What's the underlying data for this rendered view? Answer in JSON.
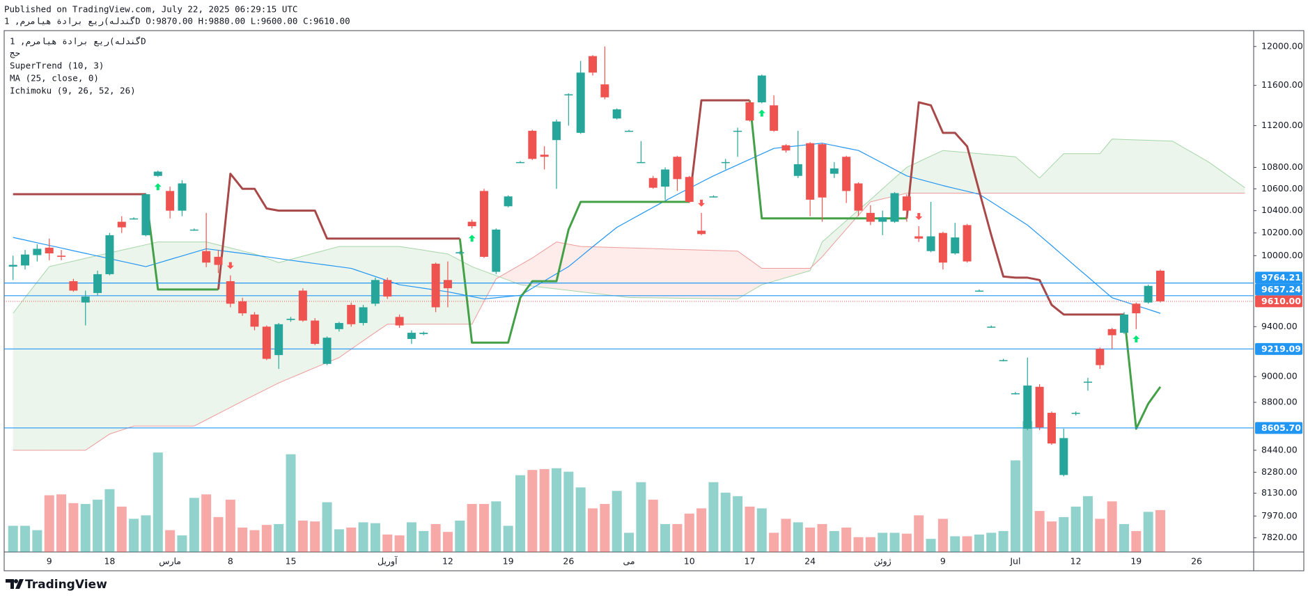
{
  "header": {
    "published": "Published on TradingView.com, July 22, 2025 06:29:15 UTC",
    "ohlc_line": "گندله)ریع برادة هیامرم, 1D O:9870.00 H:9880.00 L:9600.00 C:9610.00"
  },
  "footer": {
    "brand": "TradingView"
  },
  "chart_data": {
    "type": "candlestick",
    "symbol": "گندله)ریع برادة هیامرم, 1D",
    "log_scale": true,
    "grid": false,
    "ylim": [
      7724,
      12167
    ],
    "yticks": [
      {
        "value": 12000,
        "label": "12000.00"
      },
      {
        "value": 11600,
        "label": "11600.00"
      },
      {
        "value": 11200,
        "label": "11200.00"
      },
      {
        "value": 10800,
        "label": "10800.00"
      },
      {
        "value": 10600,
        "label": "10600.00"
      },
      {
        "value": 10400,
        "label": "10400.00"
      },
      {
        "value": 10200,
        "label": "10200.00"
      },
      {
        "value": 10000,
        "label": "10000.00"
      },
      {
        "value": 9400,
        "label": "9400.00"
      },
      {
        "value": 9000,
        "label": "9000.00"
      },
      {
        "value": 8800,
        "label": "8800.00"
      },
      {
        "value": 8440,
        "label": "8440.00"
      },
      {
        "value": 8280,
        "label": "8280.00"
      },
      {
        "value": 8130,
        "label": "8130.00"
      },
      {
        "value": 7970,
        "label": "7970.00"
      },
      {
        "value": 7820,
        "label": "7820.00"
      }
    ],
    "categories": [
      null,
      null,
      null,
      "9",
      null,
      null,
      null,
      null,
      "18",
      null,
      null,
      null,
      null,
      "مارس",
      null,
      null,
      null,
      null,
      "8",
      null,
      null,
      null,
      null,
      "15",
      null,
      null,
      null,
      null,
      null,
      null,
      null,
      "آوریل",
      null,
      null,
      null,
      null,
      "12",
      null,
      null,
      null,
      null,
      "19",
      null,
      null,
      null,
      null,
      "26",
      null,
      null,
      null,
      null,
      "می",
      null,
      null,
      null,
      null,
      "10",
      null,
      null,
      null,
      null,
      "17",
      null,
      null,
      null,
      null,
      "24",
      null,
      null,
      null,
      null,
      null,
      "ژوئن",
      null,
      null,
      null,
      null,
      "9",
      null,
      null,
      null,
      null,
      null,
      "Jul",
      null,
      null,
      null,
      null,
      "12",
      null,
      null,
      null,
      null,
      "19",
      null,
      null,
      null,
      null,
      "26",
      null,
      null,
      null,
      null
    ],
    "open": [
      9905,
      9915,
      10005,
      10070,
      10000,
      9780,
      9600,
      9680,
      9840,
      10300,
      10330,
      10180,
      10720,
      10580,
      10400,
      10230,
      10040,
      9990,
      9780,
      9610,
      9500,
      9400,
      9170,
      9455,
      9700,
      9450,
      9100,
      9380,
      9580,
      9430,
      9590,
      9790,
      9480,
      9300,
      9340,
      9930,
      9790,
      10020,
      10300,
      10580,
      9860,
      10440,
      10850,
      11150,
      10920,
      11060,
      11500,
      11130,
      11900,
      11610,
      11270,
      11150,
      10850,
      10700,
      10620,
      10900,
      10710,
      10220,
      10530,
      10850,
      11150,
      11430,
      11430,
      11400,
      11010,
      10720,
      11030,
      11020,
      10740,
      10900,
      10650,
      10380,
      10300,
      10300,
      10530,
      10170,
      10040,
      10200,
      10020,
      10270,
      9700,
      9400,
      9130,
      8870,
      8600,
      8920,
      8720,
      8260,
      8720,
      8960,
      9220,
      9380,
      9350,
      9590,
      9600,
      9870,
      null,
      null,
      null,
      null,
      null,
      null,
      null
    ],
    "high": [
      10000,
      10050,
      10100,
      10150,
      10050,
      9800,
      9700,
      9870,
      10200,
      10350,
      10340,
      10560,
      10770,
      10620,
      10680,
      10240,
      10380,
      10050,
      9830,
      9640,
      9520,
      9410,
      9430,
      9480,
      9720,
      9470,
      9320,
      9440,
      9600,
      9580,
      9810,
      9810,
      9500,
      9370,
      9360,
      9940,
      9950,
      10040,
      10320,
      10600,
      10240,
      10540,
      10860,
      11160,
      11000,
      11260,
      11520,
      11850,
      11910,
      12000,
      11370,
      11160,
      11050,
      10720,
      10800,
      10910,
      10720,
      10380,
      10540,
      10880,
      11180,
      11450,
      11710,
      11500,
      11020,
      11150,
      11040,
      11030,
      10850,
      10910,
      10660,
      10450,
      10400,
      10570,
      10550,
      10260,
      10480,
      10210,
      10290,
      10280,
      9710,
      9410,
      9140,
      8880,
      9150,
      8940,
      8730,
      8600,
      8730,
      8990,
      9230,
      9390,
      9520,
      9600,
      9750,
      9880,
      null,
      null,
      null,
      null,
      null,
      null,
      null
    ],
    "low": [
      9790,
      9880,
      9950,
      9960,
      9960,
      9690,
      9410,
      9660,
      9830,
      10200,
      10320,
      10170,
      10710,
      10330,
      10350,
      10220,
      9900,
      9850,
      9560,
      9490,
      9370,
      9130,
      9060,
      9440,
      9440,
      9250,
      9090,
      9360,
      9400,
      9410,
      9570,
      9630,
      9390,
      9260,
      9330,
      9520,
      9560,
      10010,
      10240,
      9980,
      9840,
      10430,
      10840,
      10870,
      10780,
      10600,
      11200,
      11120,
      11700,
      11460,
      11260,
      11140,
      10840,
      10600,
      10500,
      10580,
      10470,
      10180,
      10520,
      10780,
      10900,
      11240,
      11420,
      11140,
      10940,
      10700,
      10350,
      10300,
      10700,
      10470,
      10350,
      10270,
      10180,
      10290,
      10300,
      10120,
      10030,
      9880,
      10010,
      9940,
      9690,
      9390,
      9120,
      8860,
      8590,
      8590,
      8480,
      8250,
      8700,
      8890,
      9060,
      9220,
      9340,
      9380,
      9590,
      9600,
      null,
      null,
      null,
      null,
      null,
      null,
      null
    ],
    "close": [
      9920,
      10010,
      10060,
      10020,
      9990,
      9700,
      9650,
      9840,
      10180,
      10250,
      10330,
      10550,
      10760,
      10400,
      10650,
      10230,
      9940,
      9920,
      9590,
      9510,
      9400,
      9140,
      9420,
      9465,
      9450,
      9260,
      9310,
      9430,
      9420,
      9560,
      9790,
      9650,
      9410,
      9350,
      9350,
      9560,
      9720,
      10030,
      10260,
      9990,
      10230,
      10530,
      10850,
      10880,
      10900,
      11240,
      11510,
      11730,
      11730,
      11480,
      11360,
      11150,
      10850,
      10610,
      10780,
      10690,
      10480,
      10190,
      10530,
      10850,
      11150,
      11250,
      11700,
      11150,
      10960,
      10830,
      10500,
      10520,
      10790,
      10580,
      10400,
      10300,
      10340,
      10560,
      10400,
      10150,
      10170,
      9940,
      10160,
      9950,
      9700,
      9400,
      9130,
      8870,
      8930,
      8610,
      8490,
      8530,
      8720,
      8960,
      9090,
      9330,
      9500,
      9510,
      9740,
      9610,
      null,
      null,
      null,
      null,
      null,
      null,
      null
    ],
    "up_color": "#26a69a",
    "down_color": "#ef5350",
    "volume": {
      "name": "حج",
      "values": [
        30,
        30,
        25,
        65,
        66,
        56,
        55,
        60,
        72,
        52,
        38,
        42,
        114,
        25,
        19,
        62,
        66,
        40,
        60,
        28,
        25,
        31,
        32,
        112,
        36,
        35,
        57,
        26,
        28,
        34,
        33,
        20,
        19,
        34,
        24,
        32,
        23,
        36,
        55,
        55,
        58,
        30,
        88,
        94,
        95,
        96,
        92,
        74,
        50,
        55,
        70,
        22,
        80,
        60,
        32,
        32,
        44,
        50,
        80,
        68,
        64,
        52,
        50,
        22,
        38,
        34,
        28,
        32,
        24,
        28,
        17,
        17,
        22,
        22,
        21,
        42,
        15,
        38,
        18,
        18,
        20,
        22,
        24,
        105,
        150,
        47,
        35,
        40,
        52,
        64,
        38,
        58,
        32,
        24,
        46,
        48,
        null,
        null,
        null,
        null,
        null,
        null,
        null
      ]
    },
    "supertrend": {
      "name": "SuperTrend (10, 3)",
      "up_color": "#43a047",
      "down_color": "#a84848",
      "up": [
        null,
        null,
        null,
        null,
        null,
        null,
        null,
        null,
        null,
        null,
        null,
        10550,
        9710,
        9710,
        9710,
        9710,
        9710,
        9710,
        null,
        null,
        null,
        null,
        null,
        null,
        null,
        null,
        null,
        null,
        null,
        null,
        null,
        null,
        null,
        null,
        null,
        null,
        null,
        10150,
        9270,
        9270,
        9270,
        9270,
        9640,
        9780,
        9780,
        9780,
        10230,
        10480,
        10480,
        10480,
        10480,
        10480,
        10480,
        10480,
        10480,
        10480,
        10480,
        null,
        null,
        null,
        null,
        11450,
        10330,
        10330,
        10330,
        10330,
        10330,
        10330,
        10330,
        10330,
        10330,
        10330,
        10330,
        10330,
        10330,
        null,
        null,
        null,
        null,
        null,
        null,
        null,
        null,
        null,
        null,
        null,
        null,
        null,
        null,
        null,
        null,
        null,
        9500,
        8600,
        8790,
        8920,
        null,
        null,
        null,
        null,
        null,
        null,
        null
      ],
      "down": [
        10550,
        10550,
        10550,
        10550,
        10550,
        10550,
        10550,
        10550,
        10550,
        10550,
        10550,
        10550,
        null,
        null,
        null,
        null,
        null,
        9710,
        10740,
        10600,
        10600,
        10420,
        10400,
        10400,
        10400,
        10400,
        10150,
        10150,
        10150,
        10150,
        10150,
        10150,
        10150,
        10150,
        10150,
        10150,
        10150,
        10150,
        null,
        null,
        null,
        null,
        null,
        null,
        null,
        null,
        null,
        null,
        null,
        null,
        null,
        null,
        null,
        null,
        null,
        null,
        10480,
        11450,
        11450,
        11450,
        11450,
        11450,
        null,
        null,
        null,
        null,
        null,
        null,
        null,
        null,
        null,
        null,
        null,
        null,
        10330,
        11430,
        11400,
        11130,
        11130,
        11000,
        10580,
        10180,
        9820,
        9810,
        9810,
        9790,
        9580,
        9500,
        9500,
        9500,
        9500,
        9500,
        9500,
        null,
        null,
        null,
        null,
        null,
        null,
        null,
        null,
        null,
        null
      ]
    },
    "ma": {
      "name": "MA (25, close, 0)",
      "color": "#2196f3",
      "values": [
        10160,
        10137,
        10113,
        10090,
        10067,
        10043,
        10020,
        9997,
        9974,
        9951,
        9928,
        9905,
        9936,
        9967,
        9998,
        10029,
        10060,
        10047,
        10033,
        10020,
        10005,
        9990,
        9975,
        9960,
        9946,
        9932,
        9918,
        9904,
        9890,
        9855,
        9820,
        9785,
        9750,
        9735,
        9720,
        9705,
        9690,
        9670,
        9650,
        9630,
        9640,
        9650,
        9660,
        9721,
        9783,
        9844,
        9905,
        9991,
        10078,
        10164,
        10250,
        10310,
        10370,
        10430,
        10490,
        10548,
        10605,
        10663,
        10720,
        10772,
        10824,
        10876,
        10928,
        10980,
        10993,
        11005,
        11018,
        11030,
        11007,
        10983,
        10960,
        10900,
        10840,
        10780,
        10720,
        10690,
        10660,
        10630,
        10603,
        10577,
        10550,
        10480,
        10410,
        10340,
        10270,
        10179,
        10088,
        9996,
        9905,
        9817,
        9728,
        9640,
        9608,
        9575,
        9543,
        9510,
        null,
        null,
        null,
        null,
        null,
        null,
        null
      ]
    },
    "ichimoku": {
      "name": "Ichimoku (9, 26, 52, 26)",
      "span_a_color": "#a5d6a7",
      "span_b_color": "#ef9a9a",
      "bull_fill": "rgba(67,160,71,0.1)",
      "bear_fill": "rgba(244,67,54,0.1)",
      "span_a": [
        9510,
        9642,
        9773,
        9905,
        9929,
        9953,
        9977,
        10001,
        10024,
        10048,
        10072,
        10096,
        10120,
        10120,
        10120,
        10120,
        10120,
        10094,
        10068,
        10041,
        10015,
        9978,
        9940,
        9968,
        9996,
        10024,
        10052,
        10080,
        10080,
        10080,
        10080,
        10080,
        10080,
        10064,
        10048,
        10031,
        10015,
        9960,
        9905,
        9866,
        9828,
        9789,
        9750,
        9738,
        9726,
        9714,
        9702,
        9690,
        9678,
        9666,
        9654,
        9642,
        9640,
        9639,
        9638,
        9636,
        9635,
        9634,
        9633,
        9631,
        9630,
        9690,
        9750,
        9780,
        9810,
        9840,
        9870,
        10120,
        10215,
        10310,
        10405,
        10500,
        10600,
        10700,
        10800,
        10853,
        10907,
        10960,
        10950,
        10940,
        10930,
        10920,
        10910,
        10900,
        10800,
        10700,
        10815,
        10930,
        10930,
        10930,
        10930,
        11070,
        11066,
        11062,
        11058,
        11054,
        11050,
        10983,
        10917,
        10850,
        10770,
        10690,
        10610
      ],
      "span_b": [
        8440,
        8440,
        8440,
        8440,
        8440,
        8440,
        8440,
        8500,
        8560,
        8590,
        8620,
        8620,
        8620,
        8620,
        8620,
        8620,
        8667,
        8714,
        8761,
        8809,
        8856,
        8903,
        8950,
        8990,
        9030,
        9070,
        9110,
        9150,
        9218,
        9285,
        9353,
        9420,
        9420,
        9420,
        9420,
        9420,
        9420,
        9420,
        9420,
        9610,
        9800,
        9860,
        9920,
        9980,
        10050,
        10120,
        10100,
        10080,
        10077,
        10074,
        10071,
        10068,
        10065,
        10062,
        10058,
        10055,
        10052,
        10049,
        10046,
        10043,
        10040,
        9965,
        9890,
        9890,
        9890,
        9890,
        9890,
        9990,
        10113,
        10235,
        10358,
        10480,
        10507,
        10533,
        10560,
        10560,
        10560,
        10560,
        10560,
        10560,
        10560,
        10560,
        10560,
        10560,
        10560,
        10560,
        10560,
        10560,
        10560,
        10560,
        10560,
        10560,
        10560,
        10560,
        10560,
        10560,
        10560,
        10560,
        10560,
        10560,
        10560,
        10560,
        10560
      ]
    },
    "levels": {
      "color": "#2196f3",
      "values": [
        9764.21,
        9657.24,
        9219.09,
        8605.7
      ],
      "value_labels": [
        "9764.21",
        "9657.24",
        "9219.09",
        "8605.70"
      ]
    },
    "last_price": {
      "value": 9610,
      "label": "9610.00",
      "color": "#ef5350"
    }
  }
}
